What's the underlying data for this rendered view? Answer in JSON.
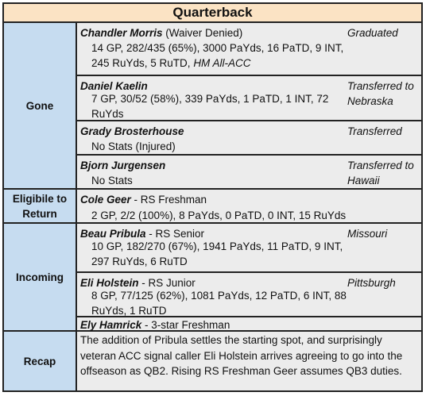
{
  "title": "Quarterback",
  "sections": {
    "gone": {
      "label": "Gone",
      "players": [
        {
          "name": "Chandler Morris",
          "detail": " (Waiver Denied)",
          "stats": "14 GP, 282/435 (65%), 3000 PaYds, 16 PaTD, 9 INT, 245 RuYds, 5 RuTD, ",
          "award": "HM All-ACC",
          "note": "Graduated"
        },
        {
          "name": "Daniel Kaelin",
          "detail": "",
          "stats": "7 GP, 30/52 (58%), 339 PaYds, 1 PaTD, 1 INT, 72 RuYds",
          "note": "Transferred to Nebraska"
        },
        {
          "name": "Grady Brosterhouse",
          "detail": "",
          "stats": "No Stats (Injured)",
          "note": "Transferred"
        },
        {
          "name": "Bjorn Jurgensen",
          "detail": "",
          "stats": "No Stats",
          "note": "Transferred to Hawaii"
        }
      ]
    },
    "eligible": {
      "label": "Eligibile to Return",
      "players": [
        {
          "name": "Cole Geer",
          "detail": " - RS Freshman",
          "stats": "2 GP, 2/2 (100%), 8 PaYds, 0 PaTD, 0 INT, 15 RuYds"
        }
      ]
    },
    "incoming": {
      "label": "Incoming",
      "players": [
        {
          "name": "Beau Pribula",
          "detail": " - RS Senior",
          "stats": "10 GP, 182/270 (67%), 1941 PaYds, 11 PaTD, 9 INT, 297 RuYds, 6 RuTD",
          "note": "Missouri"
        },
        {
          "name": "Eli Holstein",
          "detail": " - RS Junior",
          "stats": "8 GP, 77/125 (62%), 1081 PaYds, 12 PaTD, 6 INT, 88 RuYds, 1 RuTD",
          "note": "Pittsburgh"
        },
        {
          "name": "Ely Hamrick",
          "detail": " - 3-star Freshman"
        }
      ]
    },
    "recap": {
      "label": "Recap",
      "text": "The addition of Pribula settles the starting spot, and surprisingly veteran ACC signal caller Eli Holstein arrives agreeing to go into the offseason as QB2. Rising RS Freshman Geer assumes QB3 duties."
    }
  }
}
